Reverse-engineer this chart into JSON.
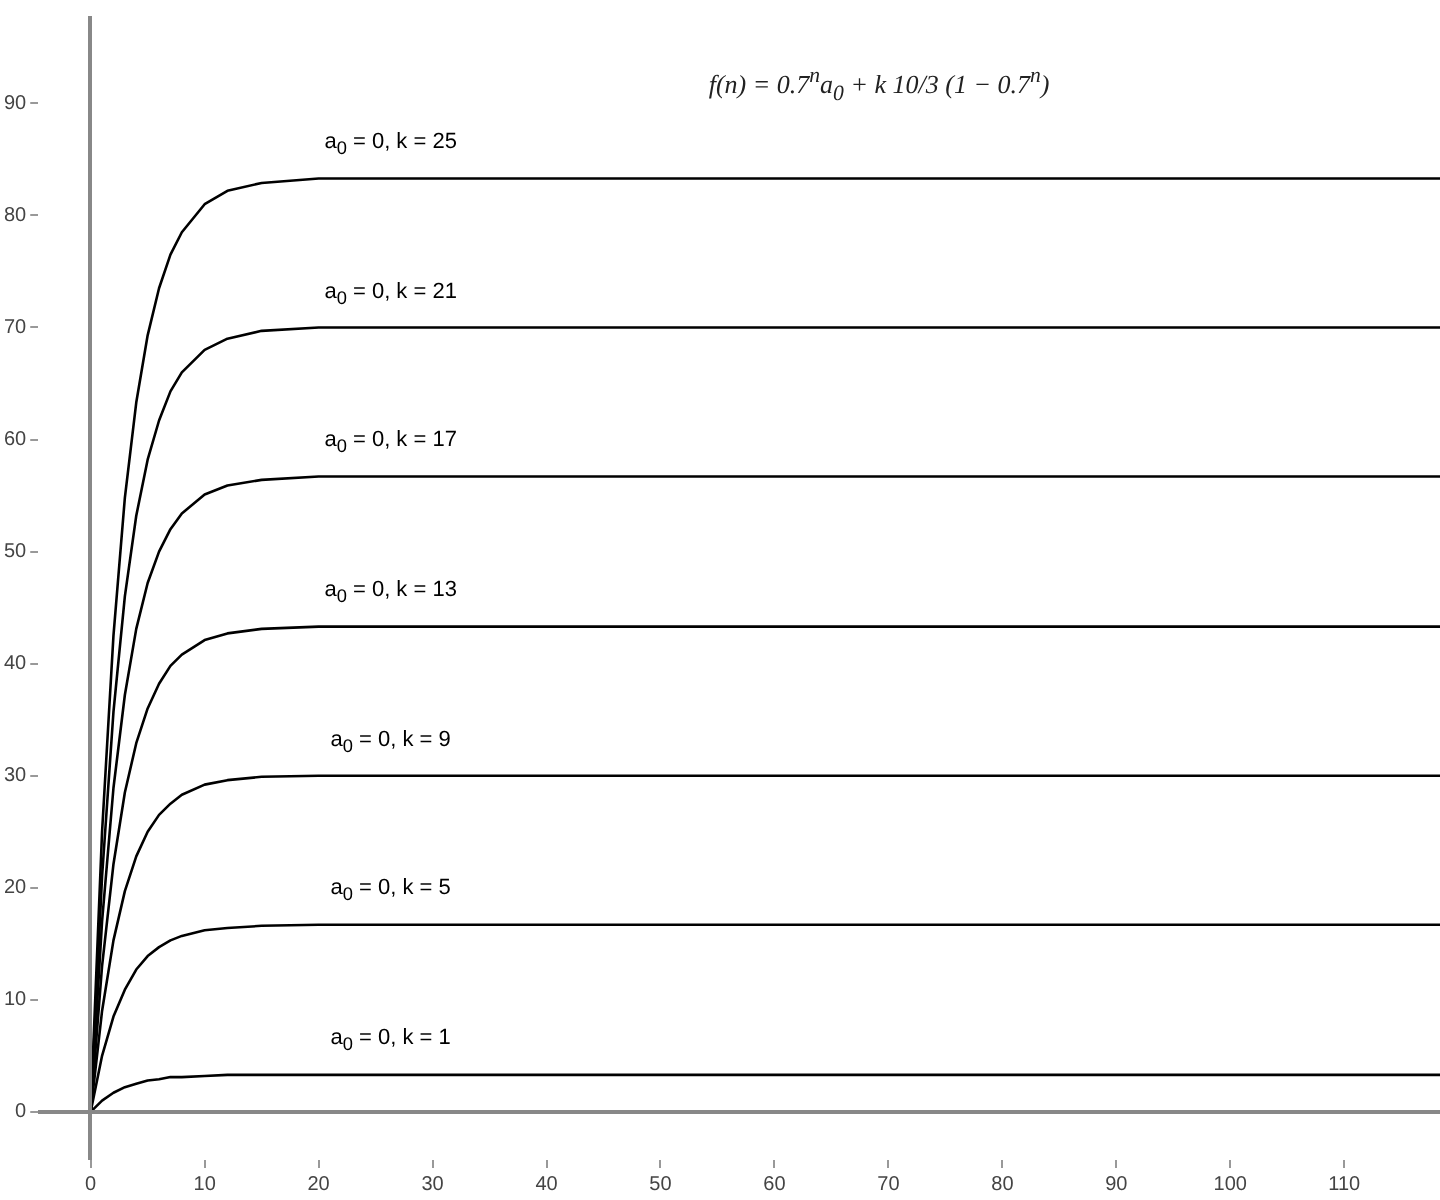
{
  "chart_data": {
    "type": "line",
    "title": "f(n) = 0.7$^{n}$a$_{0}$ + k 10/3 (1 − 0.7$^{n}$)",
    "x": [
      0,
      1,
      2,
      3,
      4,
      5,
      6,
      7,
      8,
      10,
      12,
      15,
      20,
      118.4
    ],
    "series": [
      {
        "name": "a$_{0}$ = 0, k = 25",
        "color": "#000000",
        "values": [
          0,
          25,
          42.5,
          54.8,
          63.3,
          69.3,
          73.5,
          76.5,
          78.5,
          81,
          82.2,
          82.9,
          83.3,
          83.3
        ]
      },
      {
        "name": "a$_{0}$ = 0, k = 21",
        "color": "#000000",
        "values": [
          0,
          21,
          35.7,
          46,
          53.2,
          58.2,
          61.7,
          64.3,
          66,
          68,
          69,
          69.7,
          70,
          70
        ]
      },
      {
        "name": "a$_{0}$ = 0, k = 17",
        "color": "#000000",
        "values": [
          0,
          17,
          28.9,
          37.2,
          43.1,
          47.2,
          50,
          52,
          53.4,
          55.1,
          55.9,
          56.4,
          56.7,
          56.7
        ]
      },
      {
        "name": "a$_{0}$ = 0, k = 13",
        "color": "#000000",
        "values": [
          0,
          13,
          22.1,
          28.5,
          32.9,
          36,
          38.2,
          39.8,
          40.8,
          42.1,
          42.7,
          43.1,
          43.3,
          43.3
        ]
      },
      {
        "name": "a$_{0}$ = 0, k = 9",
        "color": "#000000",
        "values": [
          0,
          9,
          15.3,
          19.7,
          22.8,
          25,
          26.5,
          27.5,
          28.3,
          29.2,
          29.6,
          29.9,
          30,
          30
        ]
      },
      {
        "name": "a$_{0}$ = 0, k = 5",
        "color": "#000000",
        "values": [
          0,
          5,
          8.5,
          10.9,
          12.7,
          13.9,
          14.7,
          15.3,
          15.7,
          16.2,
          16.4,
          16.6,
          16.7,
          16.7
        ]
      },
      {
        "name": "a$_{0}$ = 0, k = 1",
        "color": "#000000",
        "values": [
          0,
          1,
          1.7,
          2.2,
          2.5,
          2.8,
          2.9,
          3.1,
          3.1,
          3.2,
          3.3,
          3.3,
          3.3,
          3.3
        ]
      }
    ],
    "xlim": [
      -4.6,
      118.4
    ],
    "ylim": [
      -4.3,
      97.8
    ],
    "xticks": [
      0,
      10,
      20,
      30,
      40,
      50,
      60,
      70,
      80,
      90,
      100,
      110
    ],
    "yticks": [
      0,
      10,
      20,
      30,
      40,
      50,
      60,
      70,
      80,
      90
    ],
    "grid": false,
    "legend": false,
    "marker": "none",
    "line_style": "solid"
  }
}
